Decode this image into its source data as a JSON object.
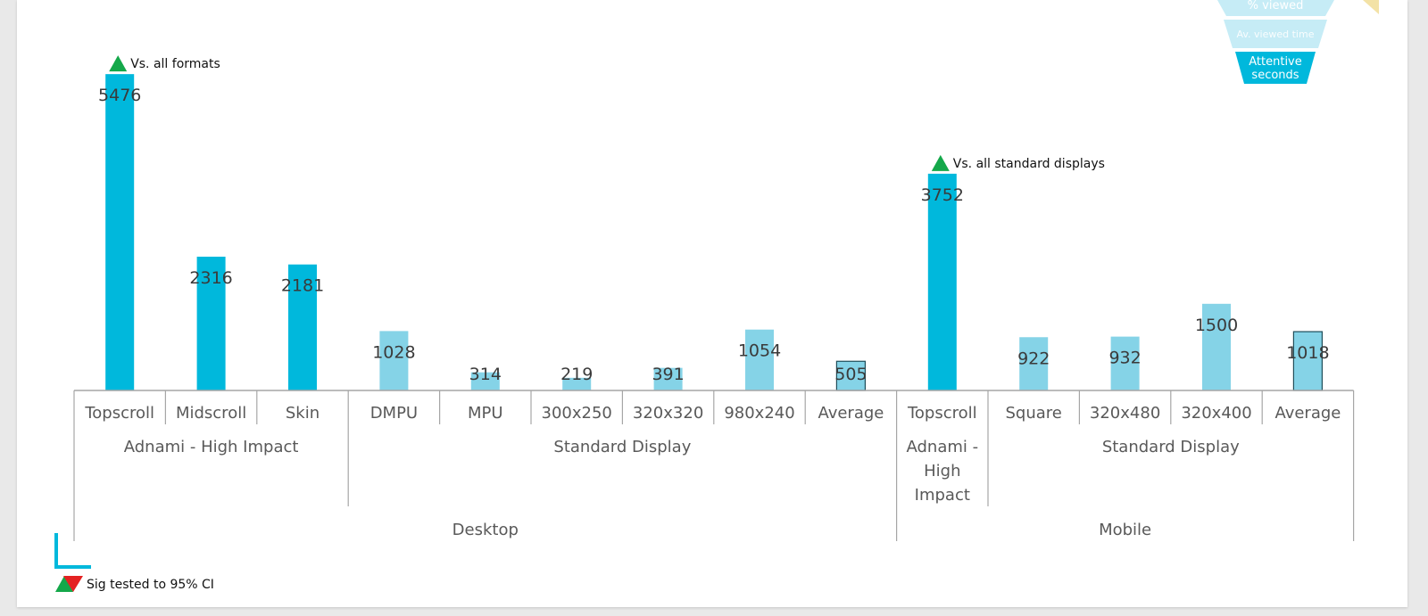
{
  "funnel": {
    "items": [
      {
        "label": "% viewed",
        "color": "#c6ecf6"
      },
      {
        "label": "Av. viewed time",
        "color": "#c6ecf6"
      },
      {
        "label": "Attentive seconds",
        "line1": "Attentive",
        "line2": "seconds",
        "color": "#00b8dc"
      }
    ]
  },
  "annotations": {
    "vs_all_formats": "Vs. all formats",
    "vs_all_standard": "Vs. all standard displays",
    "legend": "Sig tested to 95% CI"
  },
  "colors": {
    "high_impact": "#00b8dc",
    "standard": "#85d3e7",
    "sig_up": "#14a84a",
    "sig_down": "#e42222",
    "axis": "#a6a6a6",
    "average_border": "#1f4e5a"
  },
  "chart_data": {
    "type": "bar",
    "title": "",
    "xlabel": "",
    "ylabel": "",
    "ylim": [
      0,
      5600
    ],
    "grid": false,
    "categories": [
      "Topscroll",
      "Midscroll",
      "Skin",
      "DMPU",
      "MPU",
      "300x250",
      "320x320",
      "980x240",
      "Average",
      "Topscroll",
      "Square",
      "320x480",
      "320x400",
      "Average"
    ],
    "values": [
      5476,
      2316,
      2181,
      1028,
      314,
      219,
      391,
      1054,
      505,
      3752,
      922,
      932,
      1500,
      1018
    ],
    "bar_kind": [
      "high",
      "high",
      "high",
      "std",
      "std",
      "std",
      "std",
      "std",
      "avg",
      "high",
      "std",
      "std",
      "std",
      "avg"
    ],
    "groups": [
      {
        "label": "Adnami - High Impact",
        "lines": [
          "Adnami - High Impact"
        ],
        "start": 0,
        "end": 2
      },
      {
        "label": "Standard Display",
        "lines": [
          "Standard Display"
        ],
        "start": 3,
        "end": 8
      },
      {
        "label": "Adnami - High Impact",
        "lines": [
          "Adnami -",
          "High",
          "Impact"
        ],
        "start": 9,
        "end": 9
      },
      {
        "label": "Standard Display",
        "lines": [
          "Standard Display"
        ],
        "start": 10,
        "end": 13
      }
    ],
    "platforms": [
      {
        "label": "Desktop",
        "start": 0,
        "end": 8
      },
      {
        "label": "Mobile",
        "start": 9,
        "end": 13
      }
    ],
    "significance": [
      {
        "index": 0,
        "direction": "up",
        "label": "Vs. all formats"
      },
      {
        "index": 9,
        "direction": "up",
        "label": "Vs. all standard displays"
      }
    ]
  }
}
